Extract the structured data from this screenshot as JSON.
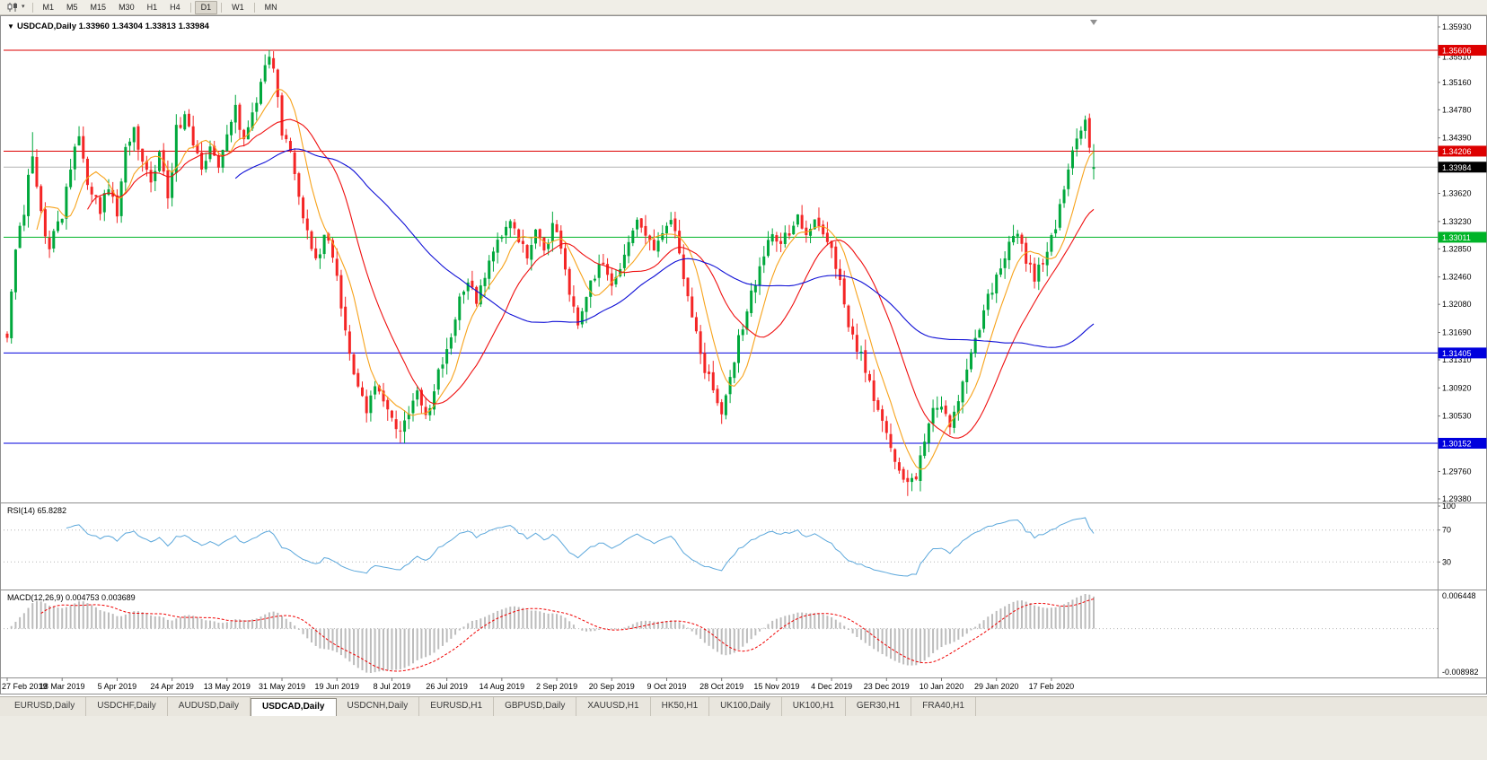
{
  "icons": {
    "chart_menu": "▼",
    "dropdown_caret": "▾"
  },
  "toolbar": {
    "timeframes": [
      "M1",
      "M5",
      "M15",
      "M30",
      "H1",
      "H4",
      "D1",
      "W1",
      "MN"
    ],
    "active_timeframe": "D1",
    "separators_after": [
      "H4",
      "D1",
      "W1"
    ]
  },
  "chart": {
    "title": "USDCAD,Daily 1.33960 1.34304 1.33813 1.33984",
    "symbol": "USDCAD",
    "period": "Daily",
    "ohlc_display": {
      "open": "1.33960",
      "high": "1.34304",
      "low": "1.33813",
      "close": "1.33984"
    },
    "price_axis_ticks": [
      "1.35930",
      "1.35510",
      "1.35160",
      "1.34780",
      "1.34390",
      "1.33620",
      "1.33230",
      "1.32850",
      "1.32460",
      "1.32080",
      "1.31690",
      "1.31310",
      "1.30920",
      "1.30530",
      "1.29760",
      "1.29380"
    ],
    "hlines": [
      {
        "name": "resistance-line-1",
        "value": 1.35606,
        "label": "1.35606",
        "color": "#dd0000",
        "label_bg": "#dd0000",
        "label_color": "#ffffff"
      },
      {
        "name": "resistance-line-2",
        "value": 1.34206,
        "label": "1.34206",
        "color": "#dd0000",
        "label_bg": "#dd0000",
        "label_color": "#ffffff"
      },
      {
        "name": "current-price-line",
        "value": 1.33984,
        "label": "1.33984",
        "color": "#b4b4b4",
        "label_bg": "#000000",
        "label_color": "#ffffff"
      },
      {
        "name": "pivot-line-green",
        "value": 1.33011,
        "label": "1.33011",
        "color": "#00b428",
        "label_bg": "#00b428",
        "label_color": "#ffffff"
      },
      {
        "name": "support-line-1",
        "value": 1.31405,
        "label": "1.31405",
        "color": "#0000dd",
        "label_bg": "#0000dd",
        "label_color": "#ffffff"
      },
      {
        "name": "support-line-2",
        "value": 1.30152,
        "label": "1.30152",
        "color": "#0000dd",
        "label_bg": "#0000dd",
        "label_color": "#ffffff"
      }
    ]
  },
  "rsi_panel": {
    "label": "RSI(14) 65.8282",
    "current_value": 65.8282,
    "levels": [
      {
        "label": "100",
        "value": 100
      },
      {
        "label": "70",
        "value": 70
      },
      {
        "label": "30",
        "value": 30
      }
    ],
    "line_color": "#5ba7db"
  },
  "macd_panel": {
    "label": "MACD(12,26,9) 0.004753 0.003689",
    "current_main": 0.004753,
    "current_signal": 0.003689,
    "axis_labels": [
      {
        "label": "0.006448",
        "position": "top"
      },
      {
        "label": "-0.008982",
        "position": "bottom"
      }
    ],
    "histogram_color": "#bcbcbc",
    "signal_color": "#f00000"
  },
  "date_axis": {
    "bars_per_label": 13,
    "labels": [
      "27 Feb 2019",
      "18 Mar 2019",
      "5 Apr 2019",
      "24 Apr 2019",
      "13 May 2019",
      "31 May 2019",
      "19 Jun 2019",
      "8 Jul 2019",
      "26 Jul 2019",
      "14 Aug 2019",
      "2 Sep 2019",
      "20 Sep 2019",
      "9 Oct 2019",
      "28 Oct 2019",
      "15 Nov 2019",
      "4 Dec 2019",
      "23 Dec 2019",
      "10 Jan 2020",
      "29 Jan 2020",
      "17 Feb 2020"
    ]
  },
  "tabs": {
    "items": [
      {
        "label": "EURUSD,Daily"
      },
      {
        "label": "USDCHF,Daily"
      },
      {
        "label": "AUDUSD,Daily"
      },
      {
        "label": "USDCAD,Daily",
        "active": true
      },
      {
        "label": "USDCNH,Daily"
      },
      {
        "label": "EURUSD,H1"
      },
      {
        "label": "GBPUSD,Daily"
      },
      {
        "label": "XAUUSD,H1"
      },
      {
        "label": "HK50,H1"
      },
      {
        "label": "UK100,Daily"
      },
      {
        "label": "UK100,H1"
      },
      {
        "label": "GER30,H1"
      },
      {
        "label": "FRA40,H1"
      }
    ]
  },
  "chart_data": {
    "type": "candlestick",
    "symbol": "USDCAD",
    "timeframe": "Daily",
    "bar_count": 258,
    "price_top": 1.3593,
    "price_bottom": 1.2938,
    "last_ohlc": {
      "open": 1.3396,
      "high": 1.34304,
      "low": 1.33813,
      "close": 1.33984
    },
    "anchors": [
      [
        0,
        1.3165
      ],
      [
        2,
        1.329
      ],
      [
        4,
        1.334
      ],
      [
        6,
        1.342
      ],
      [
        8,
        1.333
      ],
      [
        10,
        1.329
      ],
      [
        13,
        1.333
      ],
      [
        15,
        1.34
      ],
      [
        17,
        1.344
      ],
      [
        19,
        1.338
      ],
      [
        22,
        1.334
      ],
      [
        24,
        1.337
      ],
      [
        26,
        1.333
      ],
      [
        28,
        1.342
      ],
      [
        30,
        1.345
      ],
      [
        32,
        1.34
      ],
      [
        34,
        1.338
      ],
      [
        36,
        1.342
      ],
      [
        38,
        1.335
      ],
      [
        40,
        1.345
      ],
      [
        42,
        1.347
      ],
      [
        44,
        1.343
      ],
      [
        46,
        1.339
      ],
      [
        48,
        1.343
      ],
      [
        50,
        1.34
      ],
      [
        52,
        1.345
      ],
      [
        54,
        1.348
      ],
      [
        56,
        1.343
      ],
      [
        58,
        1.347
      ],
      [
        60,
        1.352
      ],
      [
        62,
        1.3555
      ],
      [
        64,
        1.35
      ],
      [
        65,
        1.345
      ],
      [
        67,
        1.342
      ],
      [
        69,
        1.336
      ],
      [
        71,
        1.331
      ],
      [
        73,
        1.327
      ],
      [
        75,
        1.33
      ],
      [
        77,
        1.328
      ],
      [
        79,
        1.32
      ],
      [
        81,
        1.314
      ],
      [
        83,
        1.309
      ],
      [
        85,
        1.306
      ],
      [
        87,
        1.309
      ],
      [
        89,
        1.307
      ],
      [
        91,
        1.3045
      ],
      [
        93,
        1.3025
      ],
      [
        95,
        1.306
      ],
      [
        97,
        1.3085
      ],
      [
        99,
        1.305
      ],
      [
        101,
        1.309
      ],
      [
        103,
        1.313
      ],
      [
        105,
        1.316
      ],
      [
        107,
        1.322
      ],
      [
        109,
        1.324
      ],
      [
        111,
        1.321
      ],
      [
        113,
        1.325
      ],
      [
        115,
        1.328
      ],
      [
        117,
        1.33
      ],
      [
        119,
        1.333
      ],
      [
        121,
        1.33
      ],
      [
        123,
        1.327
      ],
      [
        125,
        1.331
      ],
      [
        127,
        1.328
      ],
      [
        129,
        1.332
      ],
      [
        131,
        1.329
      ],
      [
        133,
        1.322
      ],
      [
        135,
        1.318
      ],
      [
        137,
        1.322
      ],
      [
        139,
        1.325
      ],
      [
        141,
        1.327
      ],
      [
        143,
        1.323
      ],
      [
        145,
        1.326
      ],
      [
        147,
        1.329
      ],
      [
        149,
        1.333
      ],
      [
        151,
        1.331
      ],
      [
        153,
        1.328
      ],
      [
        155,
        1.33
      ],
      [
        157,
        1.333
      ],
      [
        159,
        1.328
      ],
      [
        161,
        1.322
      ],
      [
        163,
        1.317
      ],
      [
        165,
        1.312
      ],
      [
        167,
        1.309
      ],
      [
        169,
        1.306
      ],
      [
        171,
        1.31
      ],
      [
        173,
        1.316
      ],
      [
        175,
        1.32
      ],
      [
        177,
        1.324
      ],
      [
        179,
        1.328
      ],
      [
        181,
        1.331
      ],
      [
        183,
        1.329
      ],
      [
        185,
        1.331
      ],
      [
        187,
        1.333
      ],
      [
        189,
        1.33
      ],
      [
        191,
        1.332
      ],
      [
        193,
        1.33
      ],
      [
        195,
        1.328
      ],
      [
        197,
        1.324
      ],
      [
        199,
        1.318
      ],
      [
        201,
        1.315
      ],
      [
        203,
        1.312
      ],
      [
        205,
        1.308
      ],
      [
        207,
        1.305
      ],
      [
        209,
        1.301
      ],
      [
        211,
        1.2975
      ],
      [
        213,
        1.2958
      ],
      [
        215,
        1.297
      ],
      [
        217,
        1.302
      ],
      [
        219,
        1.306
      ],
      [
        221,
        1.306
      ],
      [
        223,
        1.3045
      ],
      [
        225,
        1.308
      ],
      [
        227,
        1.312
      ],
      [
        229,
        1.316
      ],
      [
        231,
        1.32
      ],
      [
        233,
        1.323
      ],
      [
        235,
        1.326
      ],
      [
        237,
        1.329
      ],
      [
        239,
        1.33
      ],
      [
        241,
        1.327
      ],
      [
        243,
        1.3245
      ],
      [
        245,
        1.327
      ],
      [
        247,
        1.33
      ],
      [
        249,
        1.334
      ],
      [
        251,
        1.339
      ],
      [
        253,
        1.344
      ],
      [
        255,
        1.3465
      ],
      [
        256,
        1.343
      ],
      [
        257,
        1.33984
      ]
    ],
    "pinned_highs": {
      "6": 1.3447,
      "41": 1.3468,
      "62": 1.3561,
      "255": 1.347
    },
    "pinned_lows": {
      "93": 1.3016,
      "169": 1.3042,
      "213": 1.2942
    },
    "levels": {
      "resistance": [
        1.35606,
        1.34206
      ],
      "pivot_green": 1.33011,
      "support": [
        1.31405,
        1.30152
      ]
    },
    "colors": {
      "bull": "#00a83c",
      "bear": "#f42525",
      "ma_fast": "#f7a31c",
      "ma_mid": "#ef1010",
      "ma_slow": "#0f0fd6"
    },
    "moving_averages": [
      {
        "period": 8,
        "color_key": "ma_fast"
      },
      {
        "period": 20,
        "color_key": "ma_mid"
      },
      {
        "period": 55,
        "color_key": "ma_slow"
      }
    ],
    "indicators": {
      "rsi": {
        "period": 14,
        "current": 65.8282
      },
      "macd": {
        "fast": 12,
        "slow": 26,
        "signal": 9,
        "current_main": 0.004753,
        "current_signal": 0.003689
      }
    }
  }
}
